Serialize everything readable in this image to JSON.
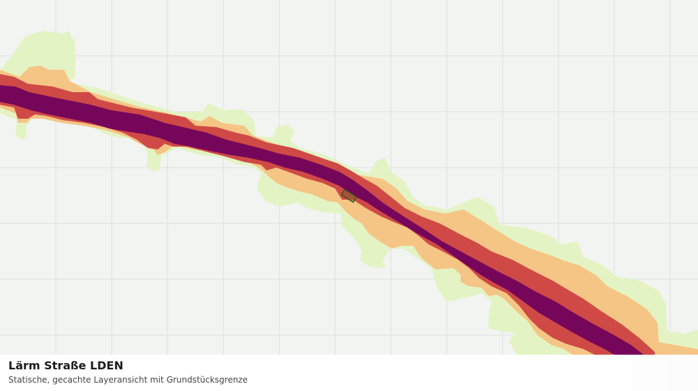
{
  "map": {
    "title": "Lärm Straße LDEN",
    "subtitle": "Statische, gecachte Layeransicht mit Grundstücksgrenze",
    "colors": {
      "background": "#f2f4f2",
      "grid": "#dedfdd",
      "band_outer": "#e4f3c4",
      "band_mid": "#f5c585",
      "band_inner": "#cf4a46",
      "band_core": "#76065a",
      "parcel_fill": "#8a5a2a",
      "parcel_outline": "#2e5b1e"
    },
    "layers": [
      {
        "name": "outer-noise-band"
      },
      {
        "name": "mid-noise-band"
      },
      {
        "name": "inner-noise-band"
      },
      {
        "name": "core-noise-band"
      }
    ]
  }
}
